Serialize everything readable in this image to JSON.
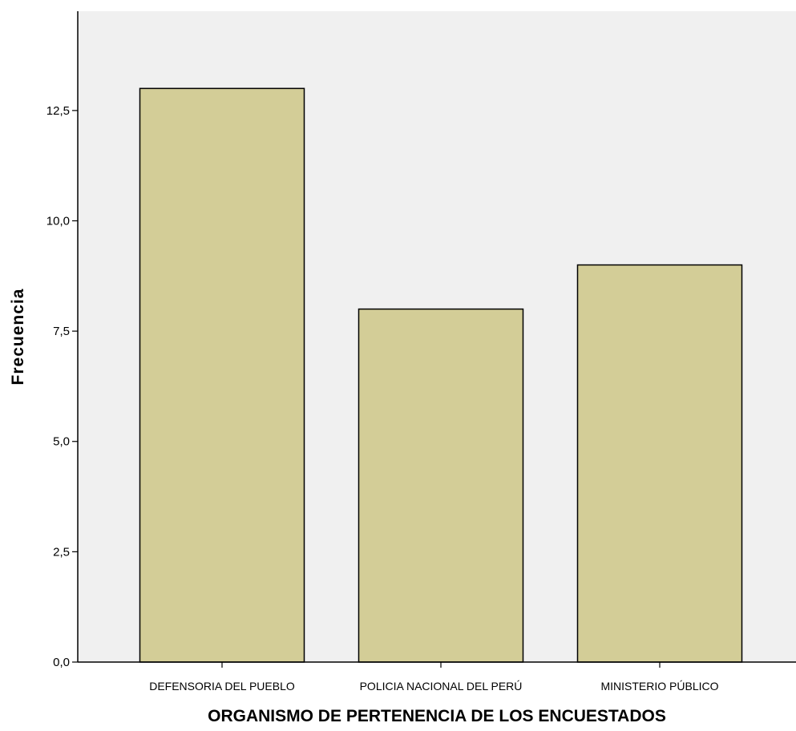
{
  "chart_data": {
    "type": "bar",
    "categories": [
      "DEFENSORIA DEL PUEBLO",
      "POLICIA NACIONAL DEL PERÚ",
      "MINISTERIO PÚBLICO"
    ],
    "values": [
      13,
      8,
      9
    ],
    "xlabel": "ORGANISMO DE PERTENENCIA DE LOS ENCUESTADOS",
    "ylabel": "Frecuencia",
    "ylim": [
      0,
      14.75
    ],
    "yticks": [
      0,
      2.5,
      5,
      7.5,
      10,
      12.5
    ],
    "ytick_labels": [
      "0,0",
      "2,5",
      "5,0",
      "7,5",
      "10,0",
      "12,5"
    ],
    "grid": false,
    "colors": {
      "plot_background": "#f0f0f0",
      "bar_fill": "#d3cd97",
      "bar_stroke": "#000000"
    }
  }
}
